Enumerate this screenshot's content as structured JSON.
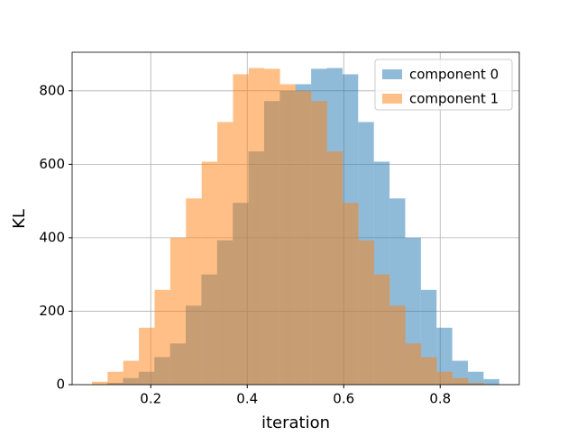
{
  "chart_data": {
    "type": "histogram",
    "xlabel": "iteration",
    "ylabel": "KL",
    "xlim": [
      0.037,
      0.964
    ],
    "ylim": [
      0,
      905
    ],
    "xticks": [
      0.2,
      0.4,
      0.6,
      0.8
    ],
    "yticks": [
      0,
      200,
      400,
      600,
      800
    ],
    "grid": true,
    "legend": "upper right",
    "alpha": 0.5,
    "series": [
      {
        "name": "component 0",
        "color": "#1f77b4",
        "bins": [
          0.11,
          0.1425,
          0.175,
          0.2075,
          0.24,
          0.2725,
          0.305,
          0.3375,
          0.37,
          0.4025,
          0.435,
          0.4675,
          0.5,
          0.5325,
          0.565,
          0.5975,
          0.63,
          0.6625,
          0.695,
          0.7275,
          0.76,
          0.7925,
          0.825,
          0.8575,
          0.89,
          0.9225
        ],
        "values": [
          5,
          18,
          35,
          75,
          112,
          215,
          300,
          393,
          495,
          635,
          772,
          800,
          818,
          860,
          862,
          845,
          715,
          607,
          507,
          400,
          258,
          155,
          65,
          35,
          15
        ]
      },
      {
        "name": "component 1",
        "color": "#ff7f0e",
        "bins": [
          0.078,
          0.1105,
          0.143,
          0.1755,
          0.208,
          0.2405,
          0.273,
          0.3055,
          0.338,
          0.3705,
          0.403,
          0.4355,
          0.468,
          0.5005,
          0.533,
          0.5655,
          0.598,
          0.6305,
          0.663,
          0.6955,
          0.728,
          0.7605,
          0.793,
          0.8255,
          0.858,
          0.8905
        ],
        "values": [
          8,
          35,
          65,
          155,
          258,
          400,
          507,
          607,
          715,
          845,
          862,
          860,
          818,
          800,
          772,
          635,
          495,
          393,
          300,
          215,
          112,
          75,
          35,
          18,
          5
        ]
      }
    ]
  }
}
